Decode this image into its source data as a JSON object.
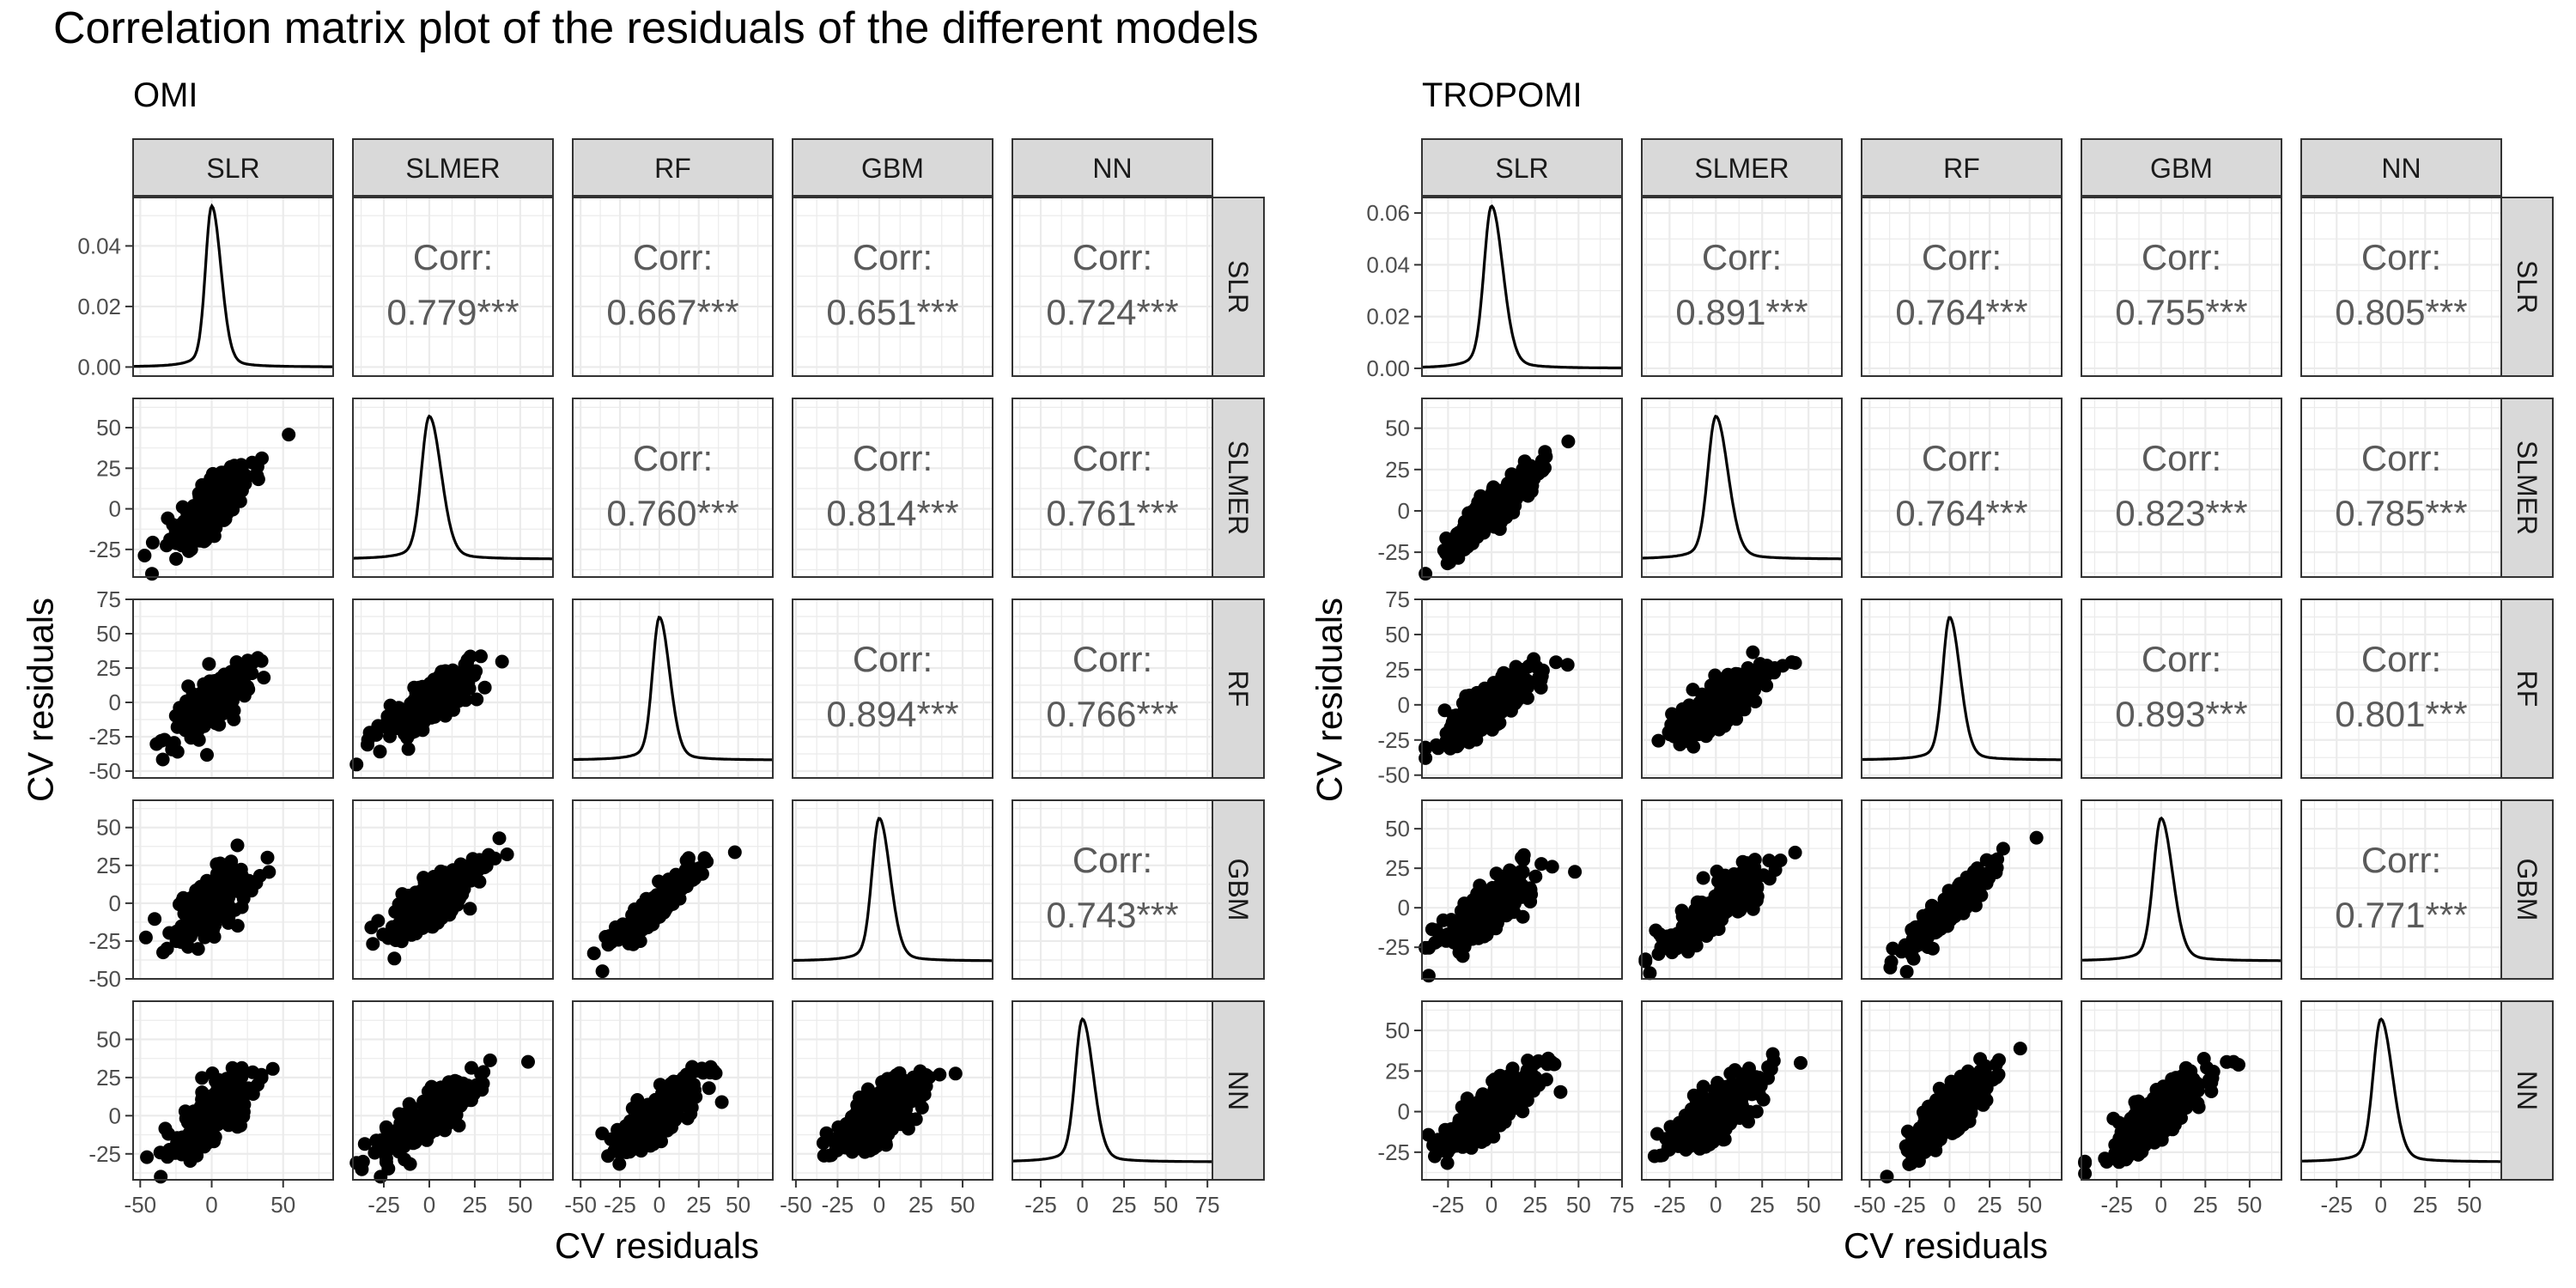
{
  "chart_data": {
    "type": "scatter",
    "title": "Correlation matrix plot of the residuals of the different models",
    "variables": [
      "SLR",
      "SLMER",
      "RF",
      "GBM",
      "NN"
    ],
    "panels": [
      {
        "subtitle": "OMI",
        "xlabel": "CV residuals",
        "ylabel": "CV residuals",
        "correlations": [
          {
            "row": "SLMER",
            "col": "SLR",
            "label": "Corr:",
            "value": "0.779***"
          },
          {
            "row": "RF",
            "col": "SLR",
            "label": "Corr:",
            "value": "0.667***"
          },
          {
            "row": "GBM",
            "col": "SLR",
            "label": "Corr:",
            "value": "0.651***"
          },
          {
            "row": "NN",
            "col": "SLR",
            "label": "Corr:",
            "value": "0.724***"
          },
          {
            "row": "RF",
            "col": "SLMER",
            "label": "Corr:",
            "value": "0.760***"
          },
          {
            "row": "GBM",
            "col": "SLMER",
            "label": "Corr:",
            "value": "0.814***"
          },
          {
            "row": "NN",
            "col": "SLMER",
            "label": "Corr:",
            "value": "0.761***"
          },
          {
            "row": "GBM",
            "col": "RF",
            "label": "Corr:",
            "value": "0.894***"
          },
          {
            "row": "NN",
            "col": "RF",
            "label": "Corr:",
            "value": "0.766***"
          },
          {
            "row": "NN",
            "col": "GBM",
            "label": "Corr:",
            "value": "0.743***"
          }
        ],
        "x_ranges": [
          [
            -55,
            85
          ],
          [
            -42,
            68
          ],
          [
            -55,
            72
          ],
          [
            -52,
            68
          ],
          [
            -42,
            78
          ]
        ],
        "x_ticks": [
          [
            {
              "v": -50,
              "label": "-50"
            },
            {
              "v": 0,
              "label": "0"
            },
            {
              "v": 50,
              "label": "50"
            }
          ],
          [
            {
              "v": -25,
              "label": "-25"
            },
            {
              "v": 0,
              "label": "0"
            },
            {
              "v": 25,
              "label": "25"
            },
            {
              "v": 50,
              "label": "50"
            }
          ],
          [
            {
              "v": -50,
              "label": "-50"
            },
            {
              "v": -25,
              "label": "-25"
            },
            {
              "v": 0,
              "label": "0"
            },
            {
              "v": 25,
              "label": "25"
            },
            {
              "v": 50,
              "label": "50"
            }
          ],
          [
            {
              "v": -50,
              "label": "-50"
            },
            {
              "v": -25,
              "label": "-25"
            },
            {
              "v": 0,
              "label": "0"
            },
            {
              "v": 25,
              "label": "25"
            },
            {
              "v": 50,
              "label": "50"
            }
          ],
          [
            {
              "v": -25,
              "label": "-25"
            },
            {
              "v": 0,
              "label": "0"
            },
            {
              "v": 25,
              "label": "25"
            },
            {
              "v": 50,
              "label": "50"
            },
            {
              "v": 75,
              "label": "75"
            }
          ]
        ],
        "y_ranges": [
          [
            -0.003,
            0.056
          ],
          [
            -42,
            68
          ],
          [
            -55,
            75
          ],
          [
            -50,
            68
          ],
          [
            -42,
            75
          ]
        ],
        "y_ticks": [
          [
            {
              "v": 0,
              "label": "0.00"
            },
            {
              "v": 0.02,
              "label": "0.02"
            },
            {
              "v": 0.04,
              "label": "0.04"
            }
          ],
          [
            {
              "v": -25,
              "label": "-25"
            },
            {
              "v": 0,
              "label": "0"
            },
            {
              "v": 25,
              "label": "25"
            },
            {
              "v": 50,
              "label": "50"
            }
          ],
          [
            {
              "v": -50,
              "label": "-50"
            },
            {
              "v": -25,
              "label": "-25"
            },
            {
              "v": 0,
              "label": "0"
            },
            {
              "v": 25,
              "label": "25"
            },
            {
              "v": 50,
              "label": "50"
            },
            {
              "v": 75,
              "label": "75"
            }
          ],
          [
            {
              "v": -50,
              "label": "-50"
            },
            {
              "v": -25,
              "label": "-25"
            },
            {
              "v": 0,
              "label": "0"
            },
            {
              "v": 25,
              "label": "25"
            },
            {
              "v": 50,
              "label": "50"
            }
          ],
          [
            {
              "v": -25,
              "label": "-25"
            },
            {
              "v": 0,
              "label": "0"
            },
            {
              "v": 25,
              "label": "25"
            },
            {
              "v": 50,
              "label": "50"
            }
          ]
        ]
      },
      {
        "subtitle": "TROPOMI",
        "xlabel": "CV residuals",
        "ylabel": "CV residuals",
        "correlations": [
          {
            "row": "SLMER",
            "col": "SLR",
            "label": "Corr:",
            "value": "0.891***"
          },
          {
            "row": "RF",
            "col": "SLR",
            "label": "Corr:",
            "value": "0.764***"
          },
          {
            "row": "GBM",
            "col": "SLR",
            "label": "Corr:",
            "value": "0.755***"
          },
          {
            "row": "NN",
            "col": "SLR",
            "label": "Corr:",
            "value": "0.805***"
          },
          {
            "row": "RF",
            "col": "SLMER",
            "label": "Corr:",
            "value": "0.764***"
          },
          {
            "row": "GBM",
            "col": "SLMER",
            "label": "Corr:",
            "value": "0.823***"
          },
          {
            "row": "NN",
            "col": "SLMER",
            "label": "Corr:",
            "value": "0.785***"
          },
          {
            "row": "GBM",
            "col": "RF",
            "label": "Corr:",
            "value": "0.893***"
          },
          {
            "row": "NN",
            "col": "RF",
            "label": "Corr:",
            "value": "0.801***"
          },
          {
            "row": "NN",
            "col": "GBM",
            "label": "Corr:",
            "value": "0.771***"
          }
        ],
        "x_ranges": [
          [
            -40,
            75
          ],
          [
            -40,
            68
          ],
          [
            -55,
            70
          ],
          [
            -45,
            68
          ],
          [
            -45,
            68
          ]
        ],
        "x_ticks": [
          [
            {
              "v": -25,
              "label": "-25"
            },
            {
              "v": 0,
              "label": "0"
            },
            {
              "v": 25,
              "label": "25"
            },
            {
              "v": 50,
              "label": "50"
            },
            {
              "v": 75,
              "label": "75"
            }
          ],
          [
            {
              "v": -25,
              "label": "-25"
            },
            {
              "v": 0,
              "label": "0"
            },
            {
              "v": 25,
              "label": "25"
            },
            {
              "v": 50,
              "label": "50"
            }
          ],
          [
            {
              "v": -50,
              "label": "-50"
            },
            {
              "v": -25,
              "label": "-25"
            },
            {
              "v": 0,
              "label": "0"
            },
            {
              "v": 25,
              "label": "25"
            },
            {
              "v": 50,
              "label": "50"
            }
          ],
          [
            {
              "v": -25,
              "label": "-25"
            },
            {
              "v": 0,
              "label": "0"
            },
            {
              "v": 25,
              "label": "25"
            },
            {
              "v": 50,
              "label": "50"
            }
          ],
          [
            {
              "v": -25,
              "label": "-25"
            },
            {
              "v": 0,
              "label": "0"
            },
            {
              "v": 25,
              "label": "25"
            },
            {
              "v": 50,
              "label": "50"
            }
          ]
        ],
        "y_ranges": [
          [
            -0.003,
            0.066
          ],
          [
            -40,
            68
          ],
          [
            -52,
            75
          ],
          [
            -45,
            68
          ],
          [
            -42,
            68
          ]
        ],
        "y_ticks": [
          [
            {
              "v": 0,
              "label": "0.00"
            },
            {
              "v": 0.02,
              "label": "0.02"
            },
            {
              "v": 0.04,
              "label": "0.04"
            },
            {
              "v": 0.06,
              "label": "0.06"
            }
          ],
          [
            {
              "v": -25,
              "label": "-25"
            },
            {
              "v": 0,
              "label": "0"
            },
            {
              "v": 25,
              "label": "25"
            },
            {
              "v": 50,
              "label": "50"
            }
          ],
          [
            {
              "v": -50,
              "label": "-50"
            },
            {
              "v": -25,
              "label": "-25"
            },
            {
              "v": 0,
              "label": "0"
            },
            {
              "v": 25,
              "label": "25"
            },
            {
              "v": 50,
              "label": "50"
            },
            {
              "v": 75,
              "label": "75"
            }
          ],
          [
            {
              "v": -25,
              "label": "-25"
            },
            {
              "v": 0,
              "label": "0"
            },
            {
              "v": 25,
              "label": "25"
            },
            {
              "v": 50,
              "label": "50"
            }
          ],
          [
            {
              "v": -25,
              "label": "-25"
            },
            {
              "v": 0,
              "label": "0"
            },
            {
              "v": 25,
              "label": "25"
            },
            {
              "v": 50,
              "label": "50"
            }
          ]
        ]
      }
    ],
    "colors": {
      "points": "#000000",
      "strip_fill": "#d9d9d9",
      "corr_text": "#5a5a5a",
      "grid": "#ebebeb"
    },
    "grid": true
  }
}
